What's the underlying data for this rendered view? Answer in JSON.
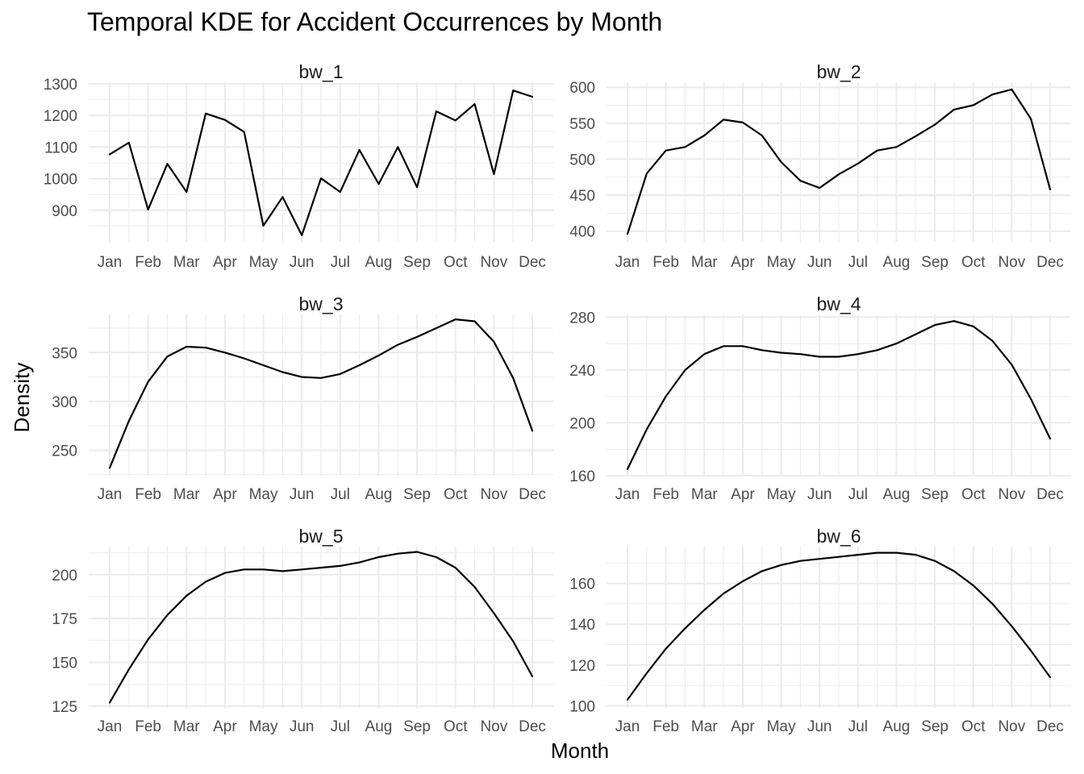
{
  "chart_data": {
    "type": "line",
    "title": "Temporal KDE for Accident Occurrences by Month",
    "xlabel": "Month",
    "ylabel": "Density",
    "grid": true,
    "legend": "none",
    "month_labels": [
      "Jan",
      "Feb",
      "Mar",
      "Apr",
      "May",
      "Jun",
      "Jul",
      "Aug",
      "Sep",
      "Oct",
      "Nov",
      "Dec"
    ],
    "x_range": [
      1,
      12
    ],
    "panels": [
      {
        "name": "bw_1",
        "ylim": [
          800,
          1305
        ],
        "yticks": [
          900,
          1000,
          1100,
          1200,
          1300
        ],
        "x": [
          1,
          1.5,
          2,
          2.5,
          3,
          3.5,
          4,
          4.5,
          5,
          5.5,
          6,
          6.5,
          7,
          7.5,
          8,
          8.5,
          9,
          9.5,
          10,
          10.5,
          11,
          11.5,
          12
        ],
        "y": [
          1077,
          1114,
          902,
          1047,
          958,
          1206,
          1186,
          1148,
          851,
          942,
          821,
          1001,
          958,
          1091,
          983,
          1100,
          973,
          1213,
          1184,
          1236,
          1014,
          1279,
          1259
        ]
      },
      {
        "name": "bw_2",
        "ylim": [
          385,
          607
        ],
        "yticks": [
          400,
          450,
          500,
          550,
          600
        ],
        "x": [
          1,
          1.5,
          2,
          2.5,
          3,
          3.5,
          4,
          4.5,
          5,
          5.5,
          6,
          6.5,
          7,
          7.5,
          8,
          8.5,
          9,
          9.5,
          10,
          10.5,
          11,
          11.5,
          12
        ],
        "y": [
          396,
          480,
          512,
          517,
          533,
          555,
          551,
          533,
          496,
          470,
          460,
          479,
          494,
          512,
          517,
          532,
          548,
          569,
          575,
          590,
          597,
          556,
          458
        ]
      },
      {
        "name": "bw_3",
        "ylim": [
          224,
          389
        ],
        "yticks": [
          250,
          300,
          350
        ],
        "x": [
          1,
          1.5,
          2,
          2.5,
          3,
          3.5,
          4,
          4.5,
          5,
          5.5,
          6,
          6.5,
          7,
          7.5,
          8,
          8.5,
          9,
          9.5,
          10,
          10.5,
          11,
          11.5,
          12
        ],
        "y": [
          232,
          280,
          320,
          346,
          356,
          355,
          350,
          344,
          337,
          330,
          325,
          324,
          328,
          337,
          347,
          358,
          366,
          375,
          384,
          382,
          361,
          324,
          270
        ]
      },
      {
        "name": "bw_4",
        "ylim": [
          160,
          282
        ],
        "yticks": [
          160,
          200,
          240,
          280
        ],
        "x": [
          1,
          1.5,
          2,
          2.5,
          3,
          3.5,
          4,
          4.5,
          5,
          5.5,
          6,
          6.5,
          7,
          7.5,
          8,
          8.5,
          9,
          9.5,
          10,
          10.5,
          11,
          11.5,
          12
        ],
        "y": [
          165,
          195,
          220,
          240,
          252,
          258,
          258,
          255,
          253,
          252,
          250,
          250,
          252,
          255,
          260,
          267,
          274,
          277,
          273,
          262,
          244,
          218,
          188
        ]
      },
      {
        "name": "bw_5",
        "ylim": [
          124,
          216
        ],
        "yticks": [
          125,
          150,
          175,
          200
        ],
        "x": [
          1,
          1.5,
          2,
          2.5,
          3,
          3.5,
          4,
          4.5,
          5,
          5.5,
          6,
          6.5,
          7,
          7.5,
          8,
          8.5,
          9,
          9.5,
          10,
          10.5,
          11,
          11.5,
          12
        ],
        "y": [
          127,
          146,
          163,
          177,
          188,
          196,
          201,
          203,
          203,
          202,
          203,
          204,
          205,
          207,
          210,
          212,
          213,
          210,
          204,
          193,
          178,
          162,
          142
        ]
      },
      {
        "name": "bw_6",
        "ylim": [
          99,
          178
        ],
        "yticks": [
          100,
          120,
          140,
          160
        ],
        "x": [
          1,
          1.5,
          2,
          2.5,
          3,
          3.5,
          4,
          4.5,
          5,
          5.5,
          6,
          6.5,
          7,
          7.5,
          8,
          8.5,
          9,
          9.5,
          10,
          10.5,
          11,
          11.5,
          12
        ],
        "y": [
          103,
          116,
          128,
          138,
          147,
          155,
          161,
          166,
          169,
          171,
          172,
          173,
          174,
          175,
          175,
          174,
          171,
          166,
          159,
          150,
          139,
          127,
          114
        ]
      }
    ]
  }
}
